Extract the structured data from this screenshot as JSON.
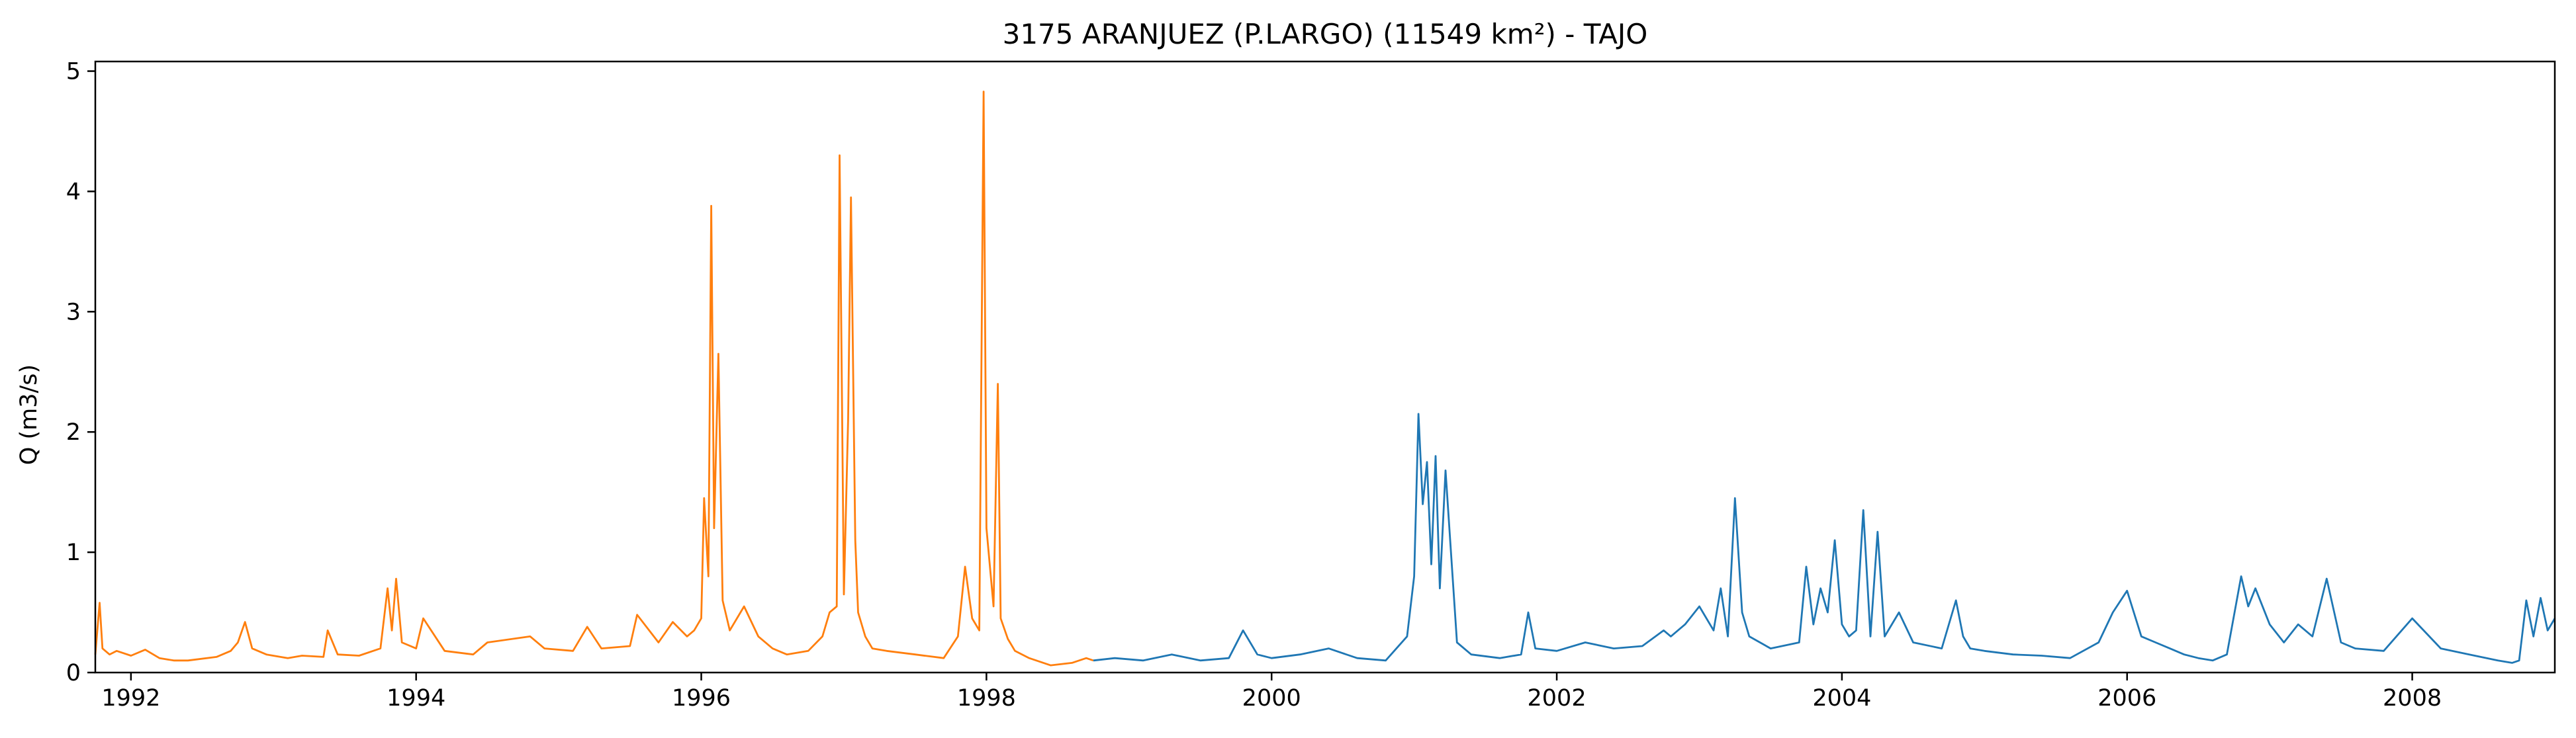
{
  "chart_data": {
    "type": "line",
    "title": "3175 ARANJUEZ (P.LARGO) (11549 km²) - TAJO",
    "xlabel": "",
    "ylabel": "Q (m3/s)",
    "xlim": [
      1991.75,
      2009.0
    ],
    "ylim": [
      0,
      5.08
    ],
    "xticks": [
      1992,
      1994,
      1996,
      1998,
      2000,
      2002,
      2004,
      2006,
      2008
    ],
    "xtick_labels": [
      "1992",
      "1994",
      "1996",
      "1998",
      "2000",
      "2002",
      "2004",
      "2006",
      "2008"
    ],
    "yticks": [
      0,
      1,
      2,
      3,
      4,
      5
    ],
    "ytick_labels": [
      "0",
      "1",
      "2",
      "3",
      "4",
      "5"
    ],
    "grid": false,
    "legend": "none",
    "series": [
      {
        "color": "#ff7f0e",
        "x": [
          1991.75,
          1991.78,
          1991.8,
          1991.85,
          1991.9,
          1992.0,
          1992.1,
          1992.2,
          1992.3,
          1992.4,
          1992.6,
          1992.7,
          1992.75,
          1992.8,
          1992.85,
          1992.95,
          1993.1,
          1993.2,
          1993.35,
          1993.38,
          1993.45,
          1993.6,
          1993.75,
          1993.8,
          1993.83,
          1993.86,
          1993.9,
          1994.0,
          1994.05,
          1994.2,
          1994.4,
          1994.5,
          1994.8,
          1994.9,
          1995.1,
          1995.2,
          1995.3,
          1995.5,
          1995.55,
          1995.7,
          1995.8,
          1995.9,
          1995.95,
          1996.0,
          1996.02,
          1996.05,
          1996.07,
          1996.09,
          1996.12,
          1996.15,
          1996.2,
          1996.3,
          1996.4,
          1996.5,
          1996.6,
          1996.75,
          1996.85,
          1996.9,
          1996.95,
          1996.97,
          1997.0,
          1997.03,
          1997.05,
          1997.08,
          1997.1,
          1997.15,
          1997.2,
          1997.3,
          1997.5,
          1997.7,
          1997.8,
          1997.85,
          1997.9,
          1997.95,
          1997.98,
          1998.0,
          1998.05,
          1998.08,
          1998.1,
          1998.15,
          1998.2,
          1998.3,
          1998.4,
          1998.45,
          1998.6,
          1998.7,
          1998.75
        ],
        "values": [
          0.15,
          0.58,
          0.2,
          0.15,
          0.18,
          0.14,
          0.19,
          0.12,
          0.1,
          0.1,
          0.13,
          0.18,
          0.25,
          0.42,
          0.2,
          0.15,
          0.12,
          0.14,
          0.13,
          0.35,
          0.15,
          0.14,
          0.2,
          0.7,
          0.35,
          0.78,
          0.25,
          0.2,
          0.45,
          0.18,
          0.15,
          0.25,
          0.3,
          0.2,
          0.18,
          0.38,
          0.2,
          0.22,
          0.48,
          0.25,
          0.42,
          0.3,
          0.35,
          0.45,
          1.45,
          0.8,
          3.88,
          1.2,
          2.65,
          0.6,
          0.35,
          0.55,
          0.3,
          0.2,
          0.15,
          0.18,
          0.3,
          0.5,
          0.55,
          4.3,
          0.65,
          2.1,
          3.95,
          1.1,
          0.5,
          0.3,
          0.2,
          0.18,
          0.15,
          0.12,
          0.3,
          0.88,
          0.45,
          0.35,
          4.83,
          1.2,
          0.55,
          2.4,
          0.45,
          0.28,
          0.18,
          0.12,
          0.08,
          0.06,
          0.08,
          0.12,
          0.1
        ]
      },
      {
        "color": "#1f77b4",
        "x": [
          1998.75,
          1998.9,
          1999.1,
          1999.3,
          1999.5,
          1999.7,
          1999.8,
          1999.9,
          2000.0,
          2000.2,
          2000.4,
          2000.6,
          2000.8,
          2000.95,
          2001.0,
          2001.03,
          2001.06,
          2001.09,
          2001.12,
          2001.15,
          2001.18,
          2001.22,
          2001.3,
          2001.4,
          2001.6,
          2001.75,
          2001.8,
          2001.85,
          2002.0,
          2002.2,
          2002.4,
          2002.6,
          2002.75,
          2002.8,
          2002.9,
          2003.0,
          2003.1,
          2003.15,
          2003.2,
          2003.25,
          2003.3,
          2003.35,
          2003.5,
          2003.7,
          2003.75,
          2003.8,
          2003.85,
          2003.9,
          2003.95,
          2004.0,
          2004.05,
          2004.1,
          2004.15,
          2004.2,
          2004.25,
          2004.3,
          2004.4,
          2004.5,
          2004.7,
          2004.8,
          2004.85,
          2004.9,
          2005.0,
          2005.2,
          2005.4,
          2005.6,
          2005.8,
          2005.9,
          2006.0,
          2006.1,
          2006.2,
          2006.3,
          2006.4,
          2006.5,
          2006.6,
          2006.7,
          2006.8,
          2006.85,
          2006.9,
          2007.0,
          2007.1,
          2007.2,
          2007.3,
          2007.4,
          2007.5,
          2007.6,
          2007.8,
          2008.0,
          2008.2,
          2008.4,
          2008.6,
          2008.7,
          2008.75,
          2008.8,
          2008.85,
          2008.9,
          2008.95,
          2009.0
        ],
        "values": [
          0.1,
          0.12,
          0.1,
          0.15,
          0.1,
          0.12,
          0.35,
          0.15,
          0.12,
          0.15,
          0.2,
          0.12,
          0.1,
          0.3,
          0.8,
          2.15,
          1.4,
          1.75,
          0.9,
          1.8,
          0.7,
          1.68,
          0.25,
          0.15,
          0.12,
          0.15,
          0.5,
          0.2,
          0.18,
          0.25,
          0.2,
          0.22,
          0.35,
          0.3,
          0.4,
          0.55,
          0.35,
          0.7,
          0.3,
          1.45,
          0.5,
          0.3,
          0.2,
          0.25,
          0.88,
          0.4,
          0.7,
          0.5,
          1.1,
          0.4,
          0.3,
          0.35,
          1.35,
          0.3,
          1.17,
          0.3,
          0.5,
          0.25,
          0.2,
          0.6,
          0.3,
          0.2,
          0.18,
          0.15,
          0.14,
          0.12,
          0.25,
          0.5,
          0.68,
          0.3,
          0.25,
          0.2,
          0.15,
          0.12,
          0.1,
          0.15,
          0.8,
          0.55,
          0.7,
          0.4,
          0.25,
          0.4,
          0.3,
          0.78,
          0.25,
          0.2,
          0.18,
          0.45,
          0.2,
          0.15,
          0.1,
          0.08,
          0.1,
          0.6,
          0.3,
          0.62,
          0.35,
          0.45
        ]
      }
    ]
  }
}
